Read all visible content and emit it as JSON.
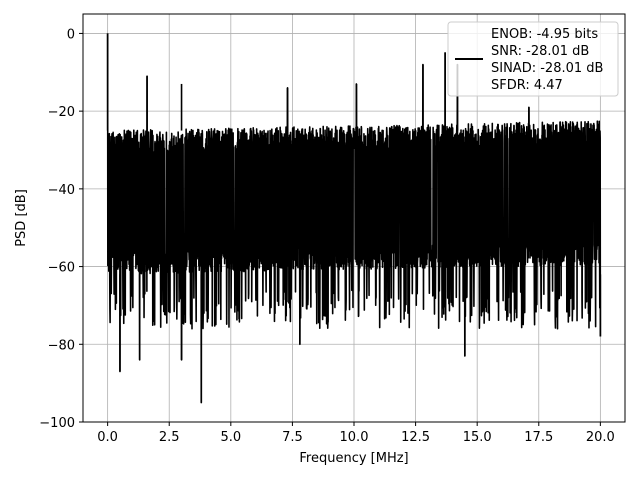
{
  "chart_data": {
    "type": "line",
    "xlabel": "Frequency [MHz]",
    "ylabel": "PSD [dB]",
    "xlim": [
      -1,
      21
    ],
    "ylim": [
      -100,
      5
    ],
    "x_ticks": [
      0.0,
      2.5,
      5.0,
      7.5,
      10.0,
      12.5,
      15.0,
      17.5,
      20.0
    ],
    "x_tick_labels": [
      "0.0",
      "2.5",
      "5.0",
      "7.5",
      "10.0",
      "12.5",
      "15.0",
      "17.5",
      "20.0"
    ],
    "y_ticks": [
      0,
      -20,
      -40,
      -60,
      -80,
      -100
    ],
    "y_tick_labels": [
      "0",
      "−20",
      "−40",
      "−60",
      "−80",
      "−100"
    ],
    "grid": true,
    "legend_position": "top-right",
    "series": [
      {
        "name": "ENOB: -4.95 bits\nSNR: -28.01 dB\nSINAD: -28.01 dB\nSFDR: 4.47",
        "legend_lines": [
          "ENOB: -4.95 bits",
          "SNR: -28.01 dB",
          "SINAD: -28.01 dB",
          "SFDR: 4.47"
        ],
        "color": "#000000",
        "x_range": [
          0,
          20
        ],
        "noise_band": {
          "upper_db": -25,
          "lower_db": -62
        },
        "spikes": [
          {
            "x": 0.0,
            "y": 0
          },
          {
            "x": 1.6,
            "y": -11
          },
          {
            "x": 3.0,
            "y": -13
          },
          {
            "x": 7.3,
            "y": -14
          },
          {
            "x": 10.1,
            "y": -13
          },
          {
            "x": 12.8,
            "y": -8
          },
          {
            "x": 13.7,
            "y": -5
          },
          {
            "x": 14.2,
            "y": -8
          },
          {
            "x": 17.1,
            "y": -19
          }
        ],
        "dips": [
          {
            "x": 0.5,
            "y": -87
          },
          {
            "x": 1.3,
            "y": -84
          },
          {
            "x": 3.0,
            "y": -84
          },
          {
            "x": 3.8,
            "y": -95
          },
          {
            "x": 7.8,
            "y": -80
          },
          {
            "x": 14.5,
            "y": -83
          },
          {
            "x": 20.0,
            "y": -78
          }
        ]
      }
    ]
  }
}
